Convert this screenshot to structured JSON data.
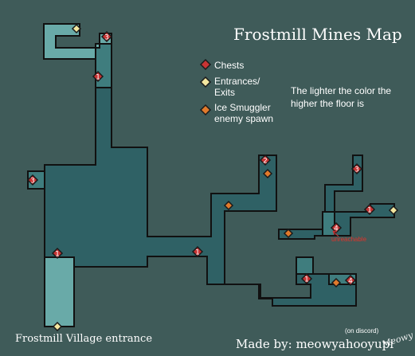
{
  "title": "Frostmill Mines Map",
  "legend": [
    {
      "label": "Chests",
      "color": "#c83434",
      "kind": "chest"
    },
    {
      "label": "Entrances/\nExits",
      "color": "#f3e7a0",
      "kind": "entrance"
    },
    {
      "label": "Ice Smuggler\nenemy spawn",
      "color": "#e07a2c",
      "kind": "spawn"
    }
  ],
  "floor_note": "The lighter the color the higher the floor is",
  "entrance_label": "Frostmill Village entrance",
  "unreachable_label": "unreachable",
  "credit": "Made by: meowyahooyupi",
  "credit_note": "(on discord)",
  "signature": "Meowy",
  "colors": {
    "background": "#3f5b59",
    "floor_low": "#2f6165",
    "floor_mid": "#3f7d7e",
    "floor_high": "#69aaa8",
    "wall": "#111111",
    "chest": "#c83434",
    "entrance": "#f3e7a0",
    "spawn": "#e07a2c"
  },
  "markers": {
    "chests": [
      {
        "floor": "3"
      },
      {
        "floor": "1"
      },
      {
        "floor": "3"
      },
      {
        "floor": "1"
      },
      {
        "floor": "1"
      },
      {
        "floor": "2"
      },
      {
        "floor": "3"
      },
      {
        "floor": "1"
      },
      {
        "floor": "4"
      },
      {
        "floor": "1"
      },
      {
        "floor": "4"
      }
    ],
    "entrances": 3,
    "spawns": 4
  }
}
